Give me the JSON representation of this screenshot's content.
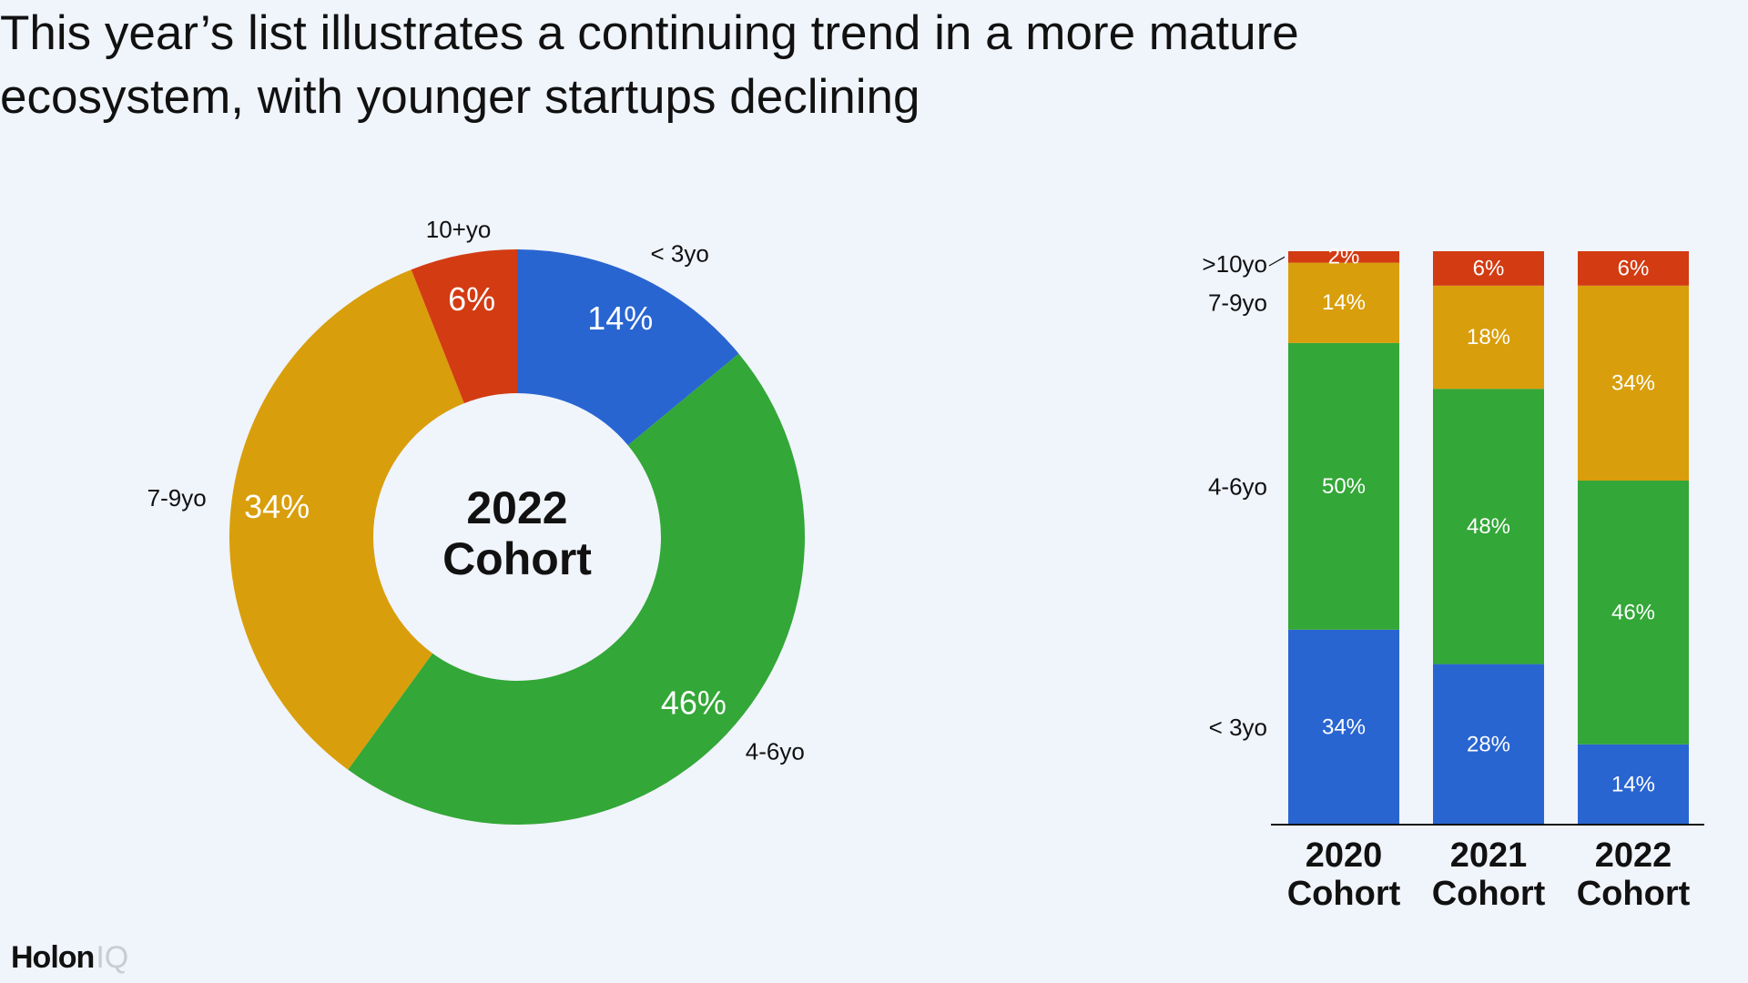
{
  "title": "This year’s list illustrates a continuing trend in a more mature ecosystem, with younger startups declining",
  "logo": {
    "brand": "Holon",
    "suffix": "IQ"
  },
  "colors": {
    "lt3": "#2965d1",
    "y4to6": "#33a737",
    "y7to9": "#d99e0b",
    "y10plus": "#d33b13"
  },
  "chart_data": [
    {
      "type": "pie",
      "center_label": [
        "2022",
        "Cohort"
      ],
      "slices": [
        {
          "name": "< 3yo",
          "value": 14,
          "label": "14%",
          "color": "#2965d1"
        },
        {
          "name": "4-6yo",
          "value": 46,
          "label": "46%",
          "color": "#33a737"
        },
        {
          "name": "7-9yo",
          "value": 34,
          "label": "34%",
          "color": "#d99e0b"
        },
        {
          "name": "10+yo",
          "value": 6,
          "label": "6%",
          "color": "#d33b13"
        }
      ]
    },
    {
      "type": "bar",
      "stacked": true,
      "categories": [
        [
          "2020",
          "Cohort"
        ],
        [
          "2021",
          "Cohort"
        ],
        [
          "2022",
          "Cohort"
        ]
      ],
      "series_labels_left": [
        "< 3yo",
        "4-6yo",
        "7-9yo",
        ">10yo"
      ],
      "series": [
        {
          "name": "< 3yo",
          "values": [
            34,
            28,
            14
          ],
          "labels": [
            "34%",
            "28%",
            "14%"
          ],
          "color": "#2965d1"
        },
        {
          "name": "4-6yo",
          "values": [
            50,
            48,
            46
          ],
          "labels": [
            "50%",
            "48%",
            "46%"
          ],
          "color": "#33a737"
        },
        {
          "name": "7-9yo",
          "values": [
            14,
            18,
            34
          ],
          "labels": [
            "14%",
            "18%",
            "34%"
          ],
          "color": "#d99e0b"
        },
        {
          "name": ">10yo",
          "values": [
            2,
            6,
            6
          ],
          "labels": [
            "2%",
            "6%",
            "6%"
          ],
          "color": "#d33b13"
        }
      ],
      "ylim": [
        0,
        100
      ]
    }
  ]
}
